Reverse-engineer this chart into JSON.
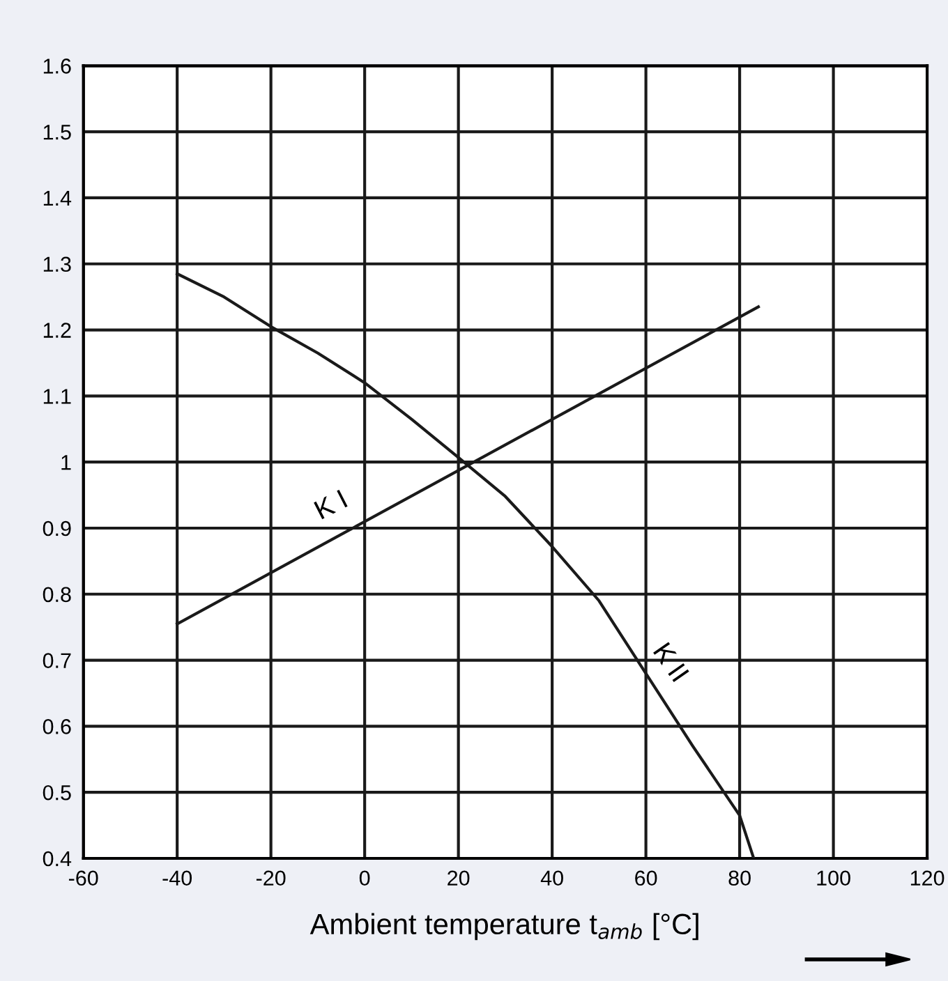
{
  "chart_data": {
    "type": "line",
    "xlabel": "Ambient temperature t$_{amb}$ [°C]",
    "series": [
      {
        "name": "K I",
        "color": "#1a1a1a",
        "x": [
          -40,
          84
        ],
        "values": [
          0.755,
          1.235
        ]
      },
      {
        "name": "K II",
        "color": "#1a1a1a",
        "x": [
          -40,
          -30,
          -20,
          -10,
          0,
          10,
          20,
          30,
          40,
          50,
          60,
          70,
          80,
          83
        ],
        "values": [
          1.285,
          1.25,
          1.205,
          1.165,
          1.12,
          1.065,
          1.007,
          0.948,
          0.872,
          0.79,
          0.68,
          0.57,
          0.465,
          0.4
        ]
      }
    ],
    "xlim": [
      -60,
      120
    ],
    "xticks": [
      -60,
      -40,
      -20,
      0,
      20,
      40,
      60,
      80,
      100,
      120
    ],
    "ylim": [
      0.4,
      1.6
    ],
    "yticks": [
      0.4,
      0.5,
      0.6,
      0.7,
      0.8,
      0.9,
      1,
      1.1,
      1.2,
      1.3,
      1.4,
      1.5,
      1.6
    ],
    "grid": true,
    "line_style": "solid",
    "marker": "none"
  }
}
